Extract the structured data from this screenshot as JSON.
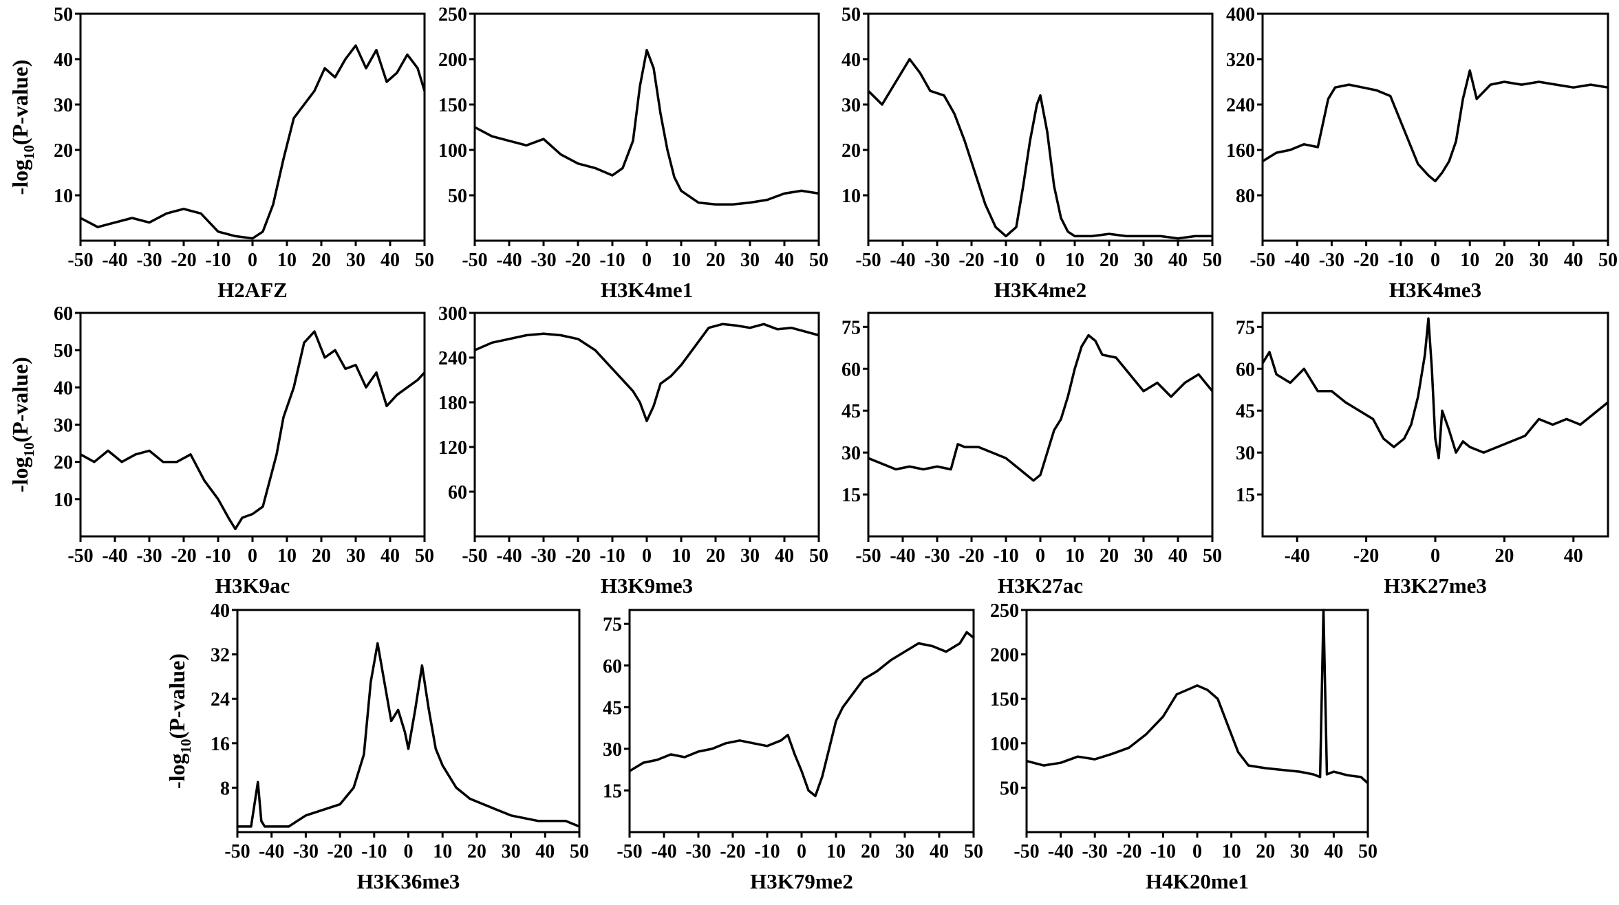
{
  "figure": {
    "ylabel_prefix": "-log",
    "ylabel_subscript": "10",
    "ylabel_suffix": "(P-value)"
  },
  "chart_data": [
    {
      "type": "line",
      "title": "H2AFZ",
      "xlim": [
        -50,
        50
      ],
      "ylim": [
        0,
        50
      ],
      "xticks": [
        -50,
        -40,
        -30,
        -20,
        -10,
        0,
        10,
        20,
        30,
        40,
        50
      ],
      "yticks": [
        10,
        20,
        30,
        40,
        50
      ],
      "series": [
        {
          "x": [
            -50,
            -45,
            -40,
            -35,
            -30,
            -25,
            -20,
            -15,
            -10,
            -5,
            0,
            3,
            6,
            9,
            12,
            15,
            18,
            21,
            24,
            27,
            30,
            33,
            36,
            39,
            42,
            45,
            48,
            50
          ],
          "y": [
            5,
            3,
            4,
            5,
            4,
            6,
            7,
            6,
            2,
            1,
            0.5,
            2,
            8,
            18,
            27,
            30,
            33,
            38,
            36,
            40,
            43,
            38,
            42,
            35,
            37,
            41,
            38,
            33
          ]
        }
      ]
    },
    {
      "type": "line",
      "title": "H3K4me1",
      "xlim": [
        -50,
        50
      ],
      "ylim": [
        0,
        250
      ],
      "xticks": [
        -50,
        -40,
        -30,
        -20,
        -10,
        0,
        10,
        20,
        30,
        40,
        50
      ],
      "yticks": [
        50,
        100,
        150,
        200,
        250
      ],
      "series": [
        {
          "x": [
            -50,
            -45,
            -40,
            -35,
            -30,
            -25,
            -20,
            -15,
            -10,
            -7,
            -4,
            -2,
            0,
            2,
            4,
            6,
            8,
            10,
            15,
            20,
            25,
            30,
            35,
            40,
            45,
            50
          ],
          "y": [
            125,
            115,
            110,
            105,
            112,
            95,
            85,
            80,
            72,
            80,
            110,
            170,
            210,
            190,
            140,
            100,
            70,
            55,
            42,
            40,
            40,
            42,
            45,
            52,
            55,
            52
          ]
        }
      ]
    },
    {
      "type": "line",
      "title": "H3K4me2",
      "xlim": [
        -50,
        50
      ],
      "ylim": [
        0,
        50
      ],
      "xticks": [
        -50,
        -40,
        -30,
        -20,
        -10,
        0,
        10,
        20,
        30,
        40,
        50
      ],
      "yticks": [
        10,
        20,
        30,
        40,
        50
      ],
      "series": [
        {
          "x": [
            -50,
            -46,
            -42,
            -38,
            -35,
            -32,
            -28,
            -25,
            -22,
            -19,
            -16,
            -13,
            -10,
            -7,
            -5,
            -3,
            -1,
            0,
            2,
            4,
            6,
            8,
            10,
            15,
            20,
            25,
            30,
            35,
            40,
            45,
            50
          ],
          "y": [
            33,
            30,
            35,
            40,
            37,
            33,
            32,
            28,
            22,
            15,
            8,
            3,
            1,
            3,
            12,
            22,
            30,
            32,
            24,
            12,
            5,
            2,
            1,
            1,
            1.5,
            1,
            1,
            1,
            0.5,
            1,
            1
          ]
        }
      ]
    },
    {
      "type": "line",
      "title": "H3K4me3",
      "xlim": [
        -50,
        50
      ],
      "ylim": [
        0,
        400
      ],
      "xticks": [
        -50,
        -40,
        -30,
        -20,
        -10,
        0,
        10,
        20,
        30,
        40,
        50
      ],
      "yticks": [
        80,
        160,
        240,
        320,
        400
      ],
      "series": [
        {
          "x": [
            -50,
            -46,
            -42,
            -38,
            -34,
            -31,
            -29,
            -25,
            -21,
            -17,
            -13,
            -9,
            -5,
            -2,
            0,
            2,
            4,
            6,
            8,
            10,
            12,
            16,
            20,
            25,
            30,
            35,
            40,
            45,
            50
          ],
          "y": [
            140,
            155,
            160,
            170,
            165,
            250,
            270,
            275,
            270,
            265,
            255,
            195,
            135,
            115,
            105,
            120,
            140,
            175,
            250,
            300,
            250,
            275,
            280,
            275,
            280,
            275,
            270,
            275,
            270
          ]
        }
      ]
    },
    {
      "type": "line",
      "title": "H3K9ac",
      "xlim": [
        -50,
        50
      ],
      "ylim": [
        0,
        60
      ],
      "xticks": [
        -50,
        -40,
        -30,
        -20,
        -10,
        0,
        10,
        20,
        30,
        40,
        50
      ],
      "yticks": [
        10,
        20,
        30,
        40,
        50,
        60
      ],
      "series": [
        {
          "x": [
            -50,
            -46,
            -42,
            -38,
            -34,
            -30,
            -26,
            -22,
            -18,
            -14,
            -10,
            -7,
            -5,
            -3,
            0,
            3,
            5,
            7,
            9,
            12,
            15,
            18,
            21,
            24,
            27,
            30,
            33,
            36,
            39,
            42,
            45,
            48,
            50
          ],
          "y": [
            22,
            20,
            23,
            20,
            22,
            23,
            20,
            20,
            22,
            15,
            10,
            5,
            2,
            5,
            6,
            8,
            15,
            22,
            32,
            40,
            52,
            55,
            48,
            50,
            45,
            46,
            40,
            44,
            35,
            38,
            40,
            42,
            44
          ]
        }
      ]
    },
    {
      "type": "line",
      "title": "H3K9me3",
      "xlim": [
        -50,
        50
      ],
      "ylim": [
        0,
        300
      ],
      "xticks": [
        -50,
        -40,
        -30,
        -20,
        -10,
        0,
        10,
        20,
        30,
        40,
        50
      ],
      "yticks": [
        60,
        120,
        180,
        240,
        300
      ],
      "series": [
        {
          "x": [
            -50,
            -45,
            -40,
            -35,
            -30,
            -25,
            -20,
            -15,
            -10,
            -7,
            -4,
            -2,
            0,
            2,
            4,
            7,
            10,
            14,
            18,
            22,
            26,
            30,
            34,
            38,
            42,
            46,
            50
          ],
          "y": [
            250,
            260,
            265,
            270,
            272,
            270,
            265,
            250,
            225,
            210,
            195,
            180,
            155,
            175,
            205,
            215,
            230,
            255,
            280,
            285,
            283,
            280,
            285,
            278,
            280,
            275,
            270
          ]
        }
      ]
    },
    {
      "type": "line",
      "title": "H3K27ac",
      "xlim": [
        -50,
        50
      ],
      "ylim": [
        0,
        80
      ],
      "xticks": [
        -50,
        -40,
        -30,
        -20,
        -10,
        0,
        10,
        20,
        30,
        40,
        50
      ],
      "yticks": [
        15,
        30,
        45,
        60,
        75
      ],
      "series": [
        {
          "x": [
            -50,
            -46,
            -42,
            -38,
            -34,
            -30,
            -26,
            -24,
            -22,
            -18,
            -14,
            -10,
            -7,
            -4,
            -2,
            0,
            2,
            4,
            6,
            8,
            10,
            12,
            14,
            16,
            18,
            22,
            26,
            30,
            34,
            38,
            42,
            46,
            50
          ],
          "y": [
            28,
            26,
            24,
            25,
            24,
            25,
            24,
            33,
            32,
            32,
            30,
            28,
            25,
            22,
            20,
            22,
            30,
            38,
            42,
            50,
            60,
            68,
            72,
            70,
            65,
            64,
            58,
            52,
            55,
            50,
            55,
            58,
            52
          ]
        }
      ]
    },
    {
      "type": "line",
      "title": "H3K27me3",
      "xlim": [
        -50,
        50
      ],
      "ylim": [
        0,
        80
      ],
      "xticks": [
        -40,
        -20,
        0,
        20,
        40
      ],
      "yticks": [
        15,
        30,
        45,
        60,
        75
      ],
      "series": [
        {
          "x": [
            -50,
            -48,
            -46,
            -42,
            -38,
            -34,
            -30,
            -26,
            -22,
            -18,
            -15,
            -12,
            -9,
            -7,
            -5,
            -3,
            -2,
            -1,
            0,
            1,
            2,
            4,
            6,
            8,
            10,
            14,
            18,
            22,
            26,
            30,
            34,
            38,
            42,
            46,
            50
          ],
          "y": [
            62,
            66,
            58,
            55,
            60,
            52,
            52,
            48,
            45,
            42,
            35,
            32,
            35,
            40,
            50,
            65,
            78,
            60,
            35,
            28,
            45,
            38,
            30,
            34,
            32,
            30,
            32,
            34,
            36,
            42,
            40,
            42,
            40,
            44,
            48
          ]
        }
      ]
    },
    {
      "type": "line",
      "title": "H3K36me3",
      "xlim": [
        -50,
        50
      ],
      "ylim": [
        0,
        40
      ],
      "xticks": [
        -50,
        -40,
        -30,
        -20,
        -10,
        0,
        10,
        20,
        30,
        40,
        50
      ],
      "yticks": [
        8,
        16,
        24,
        32,
        40
      ],
      "series": [
        {
          "x": [
            -50,
            -46,
            -44,
            -43,
            -42,
            -40,
            -35,
            -30,
            -25,
            -20,
            -16,
            -13,
            -11,
            -9,
            -7,
            -5,
            -3,
            -1,
            0,
            2,
            4,
            6,
            8,
            10,
            14,
            18,
            22,
            26,
            30,
            34,
            38,
            42,
            46,
            50
          ],
          "y": [
            1,
            1,
            9,
            2,
            1,
            1,
            1,
            3,
            4,
            5,
            8,
            14,
            27,
            34,
            27,
            20,
            22,
            18,
            15,
            22,
            30,
            22,
            15,
            12,
            8,
            6,
            5,
            4,
            3,
            2.5,
            2,
            2,
            2,
            1
          ]
        }
      ]
    },
    {
      "type": "line",
      "title": "H3K79me2",
      "xlim": [
        -50,
        50
      ],
      "ylim": [
        0,
        80
      ],
      "xticks": [
        -50,
        -40,
        -30,
        -20,
        -10,
        0,
        10,
        20,
        30,
        40,
        50
      ],
      "yticks": [
        15,
        30,
        45,
        60,
        75
      ],
      "series": [
        {
          "x": [
            -50,
            -46,
            -42,
            -38,
            -34,
            -30,
            -26,
            -22,
            -18,
            -14,
            -10,
            -6,
            -4,
            -2,
            0,
            2,
            4,
            6,
            8,
            10,
            12,
            15,
            18,
            22,
            26,
            30,
            34,
            38,
            42,
            46,
            48,
            50
          ],
          "y": [
            22,
            25,
            26,
            28,
            27,
            29,
            30,
            32,
            33,
            32,
            31,
            33,
            35,
            28,
            22,
            15,
            13,
            20,
            30,
            40,
            45,
            50,
            55,
            58,
            62,
            65,
            68,
            67,
            65,
            68,
            72,
            70
          ]
        }
      ]
    },
    {
      "type": "line",
      "title": "H4K20me1",
      "xlim": [
        -50,
        50
      ],
      "ylim": [
        0,
        250
      ],
      "xticks": [
        -50,
        -40,
        -30,
        -20,
        -10,
        0,
        10,
        20,
        30,
        40,
        50
      ],
      "yticks": [
        50,
        100,
        150,
        200,
        250
      ],
      "series": [
        {
          "x": [
            -50,
            -45,
            -40,
            -35,
            -30,
            -25,
            -20,
            -15,
            -10,
            -6,
            -3,
            0,
            3,
            6,
            9,
            12,
            15,
            20,
            25,
            30,
            34,
            36,
            37,
            38,
            40,
            44,
            48,
            50
          ],
          "y": [
            80,
            75,
            78,
            85,
            82,
            88,
            95,
            110,
            130,
            155,
            160,
            165,
            160,
            150,
            120,
            90,
            75,
            72,
            70,
            68,
            65,
            62,
            250,
            65,
            68,
            64,
            62,
            55
          ]
        }
      ]
    }
  ]
}
